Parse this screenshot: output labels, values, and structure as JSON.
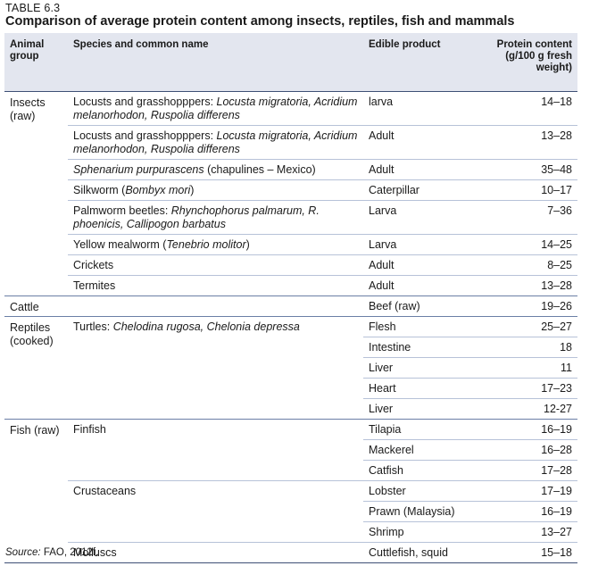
{
  "table_label": "TABLE 6.3",
  "title": "Comparison of average protein content among insects, reptiles, fish and mammals",
  "columns": {
    "group": "Animal group",
    "species": "Species and common name",
    "product": "Edible product",
    "protein": "Protein content (g/100 g fresh weight)"
  },
  "groups": [
    {
      "label": "Insects (raw)",
      "rows": [
        {
          "species_plain": "Locusts and grasshopppers: ",
          "species_italic": "Locusta migratoria, Acridium melanorhodon, Ruspolia differens",
          "species_tail": "",
          "product": "larva",
          "protein": "14–18"
        },
        {
          "species_plain": "Locusts and grasshopppers: ",
          "species_italic": "Locusta migratoria, Acridium melanorhodon, Ruspolia differens",
          "species_tail": "",
          "product": "Adult",
          "protein": "13–28"
        },
        {
          "species_plain": "",
          "species_italic": "Sphenarium purpurascens",
          "species_tail": " (chapulines – Mexico)",
          "product": "Adult",
          "protein": "35–48"
        },
        {
          "species_plain": "Silkworm (",
          "species_italic": "Bombyx mori",
          "species_tail": ")",
          "product": "Caterpillar",
          "protein": "10–17"
        },
        {
          "species_plain": "Palmworm beetles: ",
          "species_italic": "Rhynchophorus palmarum, R. phoenicis, Callipogon barbatus",
          "species_tail": "",
          "product": "Larva",
          "protein": "7–36"
        },
        {
          "species_plain": "Yellow mealworm (",
          "species_italic": "Tenebrio molitor",
          "species_tail": ")",
          "product": "Larva",
          "protein": "14–25"
        },
        {
          "species_plain": "Crickets",
          "species_italic": "",
          "species_tail": "",
          "product": "Adult",
          "protein": "8–25"
        },
        {
          "species_plain": "Termites",
          "species_italic": "",
          "species_tail": "",
          "product": "Adult",
          "protein": "13–28"
        }
      ]
    },
    {
      "label": "Cattle",
      "rows": [
        {
          "species_plain": "",
          "species_italic": "",
          "species_tail": "",
          "product": "Beef (raw)",
          "protein": "19–26"
        }
      ]
    },
    {
      "label": "Reptiles (cooked)",
      "rows": [
        {
          "species_plain": "Turtles: ",
          "species_italic": "Chelodina rugosa, Chelonia depressa",
          "species_tail": "",
          "product": "Flesh",
          "protein": "25–27"
        },
        {
          "species_plain": "",
          "species_italic": "",
          "species_tail": "",
          "product": "Intestine",
          "protein": "18"
        },
        {
          "species_plain": "",
          "species_italic": "",
          "species_tail": "",
          "product": "Liver",
          "protein": "11"
        },
        {
          "species_plain": "",
          "species_italic": "",
          "species_tail": "",
          "product": "Heart",
          "protein": "17–23"
        },
        {
          "species_plain": "",
          "species_italic": "",
          "species_tail": "",
          "product": "Liver",
          "protein": "12-27"
        }
      ]
    },
    {
      "label": "Fish (raw)",
      "rows": [
        {
          "species_plain": "Finfish",
          "species_italic": "",
          "species_tail": "",
          "product": "Tilapia",
          "protein": "16–19"
        },
        {
          "species_plain": "",
          "species_italic": "",
          "species_tail": "",
          "product": "Mackerel",
          "protein": "16–28"
        },
        {
          "species_plain": "",
          "species_italic": "",
          "species_tail": "",
          "product": "Catfish",
          "protein": "17–28"
        },
        {
          "species_plain": "Crustaceans",
          "species_italic": "",
          "species_tail": "",
          "product": "Lobster",
          "protein": "17–19"
        },
        {
          "species_plain": "",
          "species_italic": "",
          "species_tail": "",
          "product": "Prawn (Malaysia)",
          "protein": "16–19"
        },
        {
          "species_plain": "",
          "species_italic": "",
          "species_tail": "",
          "product": "Shrimp",
          "protein": "13–27"
        },
        {
          "species_plain": "Molluscs",
          "species_italic": "",
          "species_tail": "",
          "product": "Cuttlefish, squid",
          "protein": "15–18"
        }
      ]
    }
  ],
  "source_label": "Source:",
  "source_text": " FAO, 2012f."
}
